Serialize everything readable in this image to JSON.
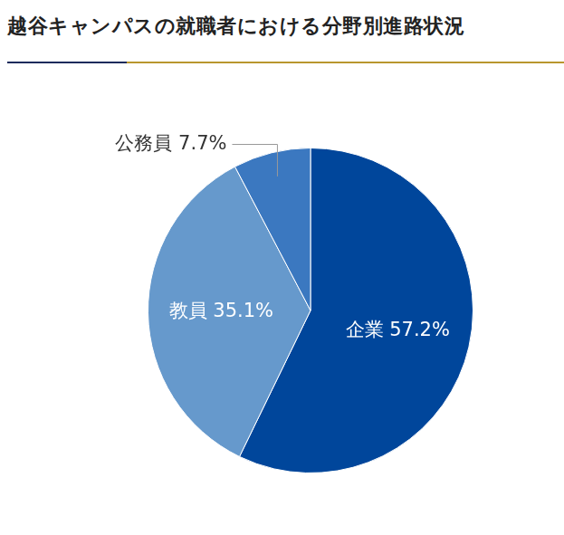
{
  "chart_data": {
    "type": "pie",
    "title": "越谷キャンパスの就職者における分野別進路状況",
    "categories": [
      "企業",
      "教員",
      "公務員"
    ],
    "values": [
      57.2,
      35.1,
      7.7
    ],
    "value_labels": [
      "57.2%",
      "35.1%",
      "7.7%"
    ],
    "colors": [
      "#00469b",
      "#6699cc",
      "#3b78c0"
    ],
    "data_labels": true
  }
}
